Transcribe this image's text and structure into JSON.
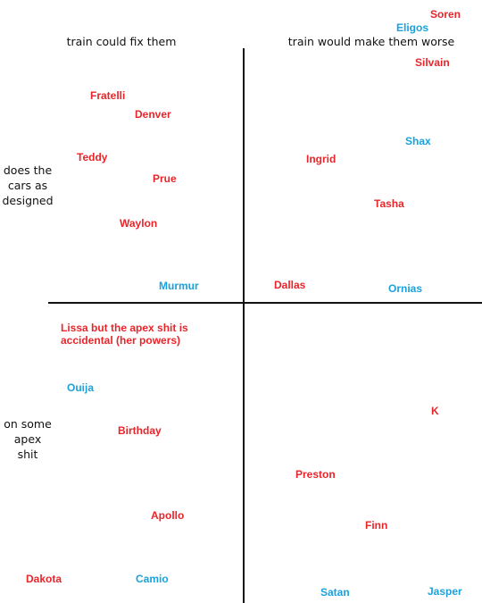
{
  "colors": {
    "red": "#e8252a",
    "blue": "#1ba1dc",
    "axis": "#111111"
  },
  "axes": {
    "top_left": "train could fix them",
    "top_right": "train would make them worse",
    "left_upper": "does the\ncars as\ndesigned",
    "left_lower": "on some\napex\nshit"
  },
  "names": {
    "soren": "Soren",
    "eligos": "Eligos",
    "silvain": "Silvain",
    "fratelli": "Fratelli",
    "denver": "Denver",
    "teddy": "Teddy",
    "prue": "Prue",
    "waylon": "Waylon",
    "murmur": "Murmur",
    "ingrid": "Ingrid",
    "shax": "Shax",
    "tasha": "Tasha",
    "dallas": "Dallas",
    "ornias": "Ornias",
    "lissa": "Lissa but the apex shit is accidental (her powers)",
    "ouija": "Ouija",
    "birthday": "Birthday",
    "apollo": "Apollo",
    "dakota": "Dakota",
    "camio": "Camio",
    "k": "K",
    "preston": "Preston",
    "finn": "Finn",
    "satan": "Satan",
    "jasper": "Jasper"
  }
}
